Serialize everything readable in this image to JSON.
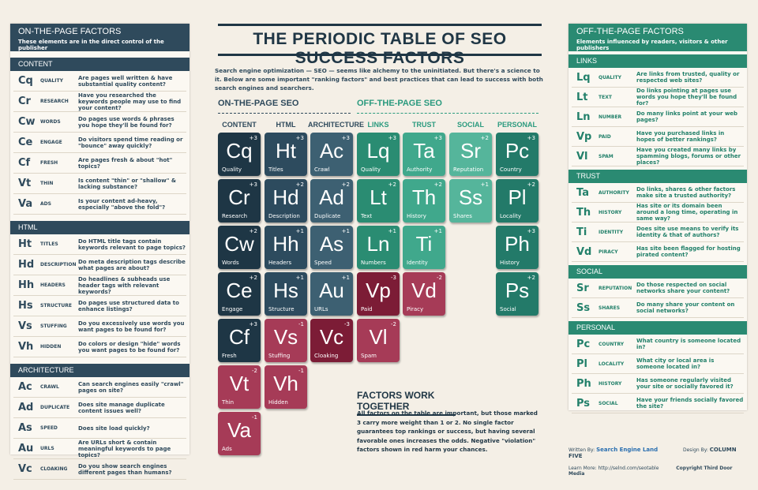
{
  "header": {
    "title": "THE PERIODIC TABLE OF SEO SUCCESS FACTORS",
    "intro": "Search engine optimization — SEO — seems like alchemy to the uninitiated. But there's a science to it. Below are some important \"ranking factors\" and best practices that can lead to success with both search engines and searchers."
  },
  "left_panel": {
    "title": "ON-THE-PAGE FACTORS",
    "subtitle": "These elements are in the direct control of the publisher",
    "sections": [
      {
        "heading": "CONTENT",
        "rows": [
          {
            "symbol": "Cq",
            "name": "QUALITY",
            "description": "Are pages well written & have substantial quality content?"
          },
          {
            "symbol": "Cr",
            "name": "RESEARCH",
            "description": "Have you researched the keywords people may use to find your content?"
          },
          {
            "symbol": "Cw",
            "name": "WORDS",
            "description": "Do pages use words & phrases you hope they'll be found for?"
          },
          {
            "symbol": "Ce",
            "name": "ENGAGE",
            "description": "Do visitors spend time reading or \"bounce\" away quickly?"
          },
          {
            "symbol": "Cf",
            "name": "FRESH",
            "description": "Are pages fresh & about \"hot\" topics?"
          },
          {
            "symbol": "Vt",
            "name": "THIN",
            "description": "Is content \"thin\" or \"shallow\" & lacking substance?"
          },
          {
            "symbol": "Va",
            "name": "ADS",
            "description": "Is your content ad-heavy, especially \"above the fold\"?"
          }
        ]
      },
      {
        "heading": "HTML",
        "rows": [
          {
            "symbol": "Ht",
            "name": "TITLES",
            "description": "Do HTML title tags contain keywords relevant to page topics?"
          },
          {
            "symbol": "Hd",
            "name": "DESCRIPTION",
            "description": "Do meta description tags describe what pages are about?"
          },
          {
            "symbol": "Hh",
            "name": "HEADERS",
            "description": "Do headlines & subheads use header tags with relevant keywords?"
          },
          {
            "symbol": "Hs",
            "name": "STRUCTURE",
            "description": "Do pages use structured data to enhance listings?"
          },
          {
            "symbol": "Vs",
            "name": "STUFFING",
            "description": "Do you excessively use words you want pages to be found for?"
          },
          {
            "symbol": "Vh",
            "name": "HIDDEN",
            "description": "Do colors or design \"hide\" words you want pages to be found for?"
          }
        ]
      },
      {
        "heading": "ARCHITECTURE",
        "rows": [
          {
            "symbol": "Ac",
            "name": "CRAWL",
            "description": "Can search engines easily \"crawl\" pages on site?"
          },
          {
            "symbol": "Ad",
            "name": "DUPLICATE",
            "description": "Does site manage duplicate content issues well?"
          },
          {
            "symbol": "As",
            "name": "SPEED",
            "description": "Does site load quickly?"
          },
          {
            "symbol": "Au",
            "name": "URLS",
            "description": "Are URLs short & contain meaningful keywords to page topics?"
          },
          {
            "symbol": "Vc",
            "name": "CLOAKING",
            "description": "Do you show search engines different pages than humans?"
          }
        ]
      }
    ]
  },
  "right_panel": {
    "title": "OFF-THE-PAGE FACTORS",
    "subtitle": "Elements influenced by readers, visitors & other publishers",
    "sections": [
      {
        "heading": "LINKS",
        "rows": [
          {
            "symbol": "Lq",
            "name": "QUALITY",
            "description": "Are links from trusted, quality or respected web sites?"
          },
          {
            "symbol": "Lt",
            "name": "TEXT",
            "description": "Do links pointing at pages use words you hope they'll be found for?"
          },
          {
            "symbol": "Ln",
            "name": "NUMBER",
            "description": "Do many links point at your web pages?"
          },
          {
            "symbol": "Vp",
            "name": "PAID",
            "description": "Have you purchased links in hopes of better rankings?"
          },
          {
            "symbol": "Vl",
            "name": "SPAM",
            "description": "Have you created many links by spamming blogs, forums or other places?"
          }
        ]
      },
      {
        "heading": "TRUST",
        "rows": [
          {
            "symbol": "Ta",
            "name": "AUTHORITY",
            "description": "Do links, shares & other factors make site a trusted authority?"
          },
          {
            "symbol": "Th",
            "name": "HISTORY",
            "description": "Has site or its domain been around a long time, operating in same way?"
          },
          {
            "symbol": "Ti",
            "name": "IDENTITY",
            "description": "Does site use means to verify its identity & that of authors?"
          },
          {
            "symbol": "Vd",
            "name": "PIRACY",
            "description": "Has site been flagged for hosting pirated content?"
          }
        ]
      },
      {
        "heading": "SOCIAL",
        "rows": [
          {
            "symbol": "Sr",
            "name": "REPUTATION",
            "description": "Do those respected on social networks share your content?"
          },
          {
            "symbol": "Ss",
            "name": "SHARES",
            "description": "Do many share your content on social networks?"
          }
        ]
      },
      {
        "heading": "PERSONAL",
        "rows": [
          {
            "symbol": "Pc",
            "name": "COUNTRY",
            "description": "What country is someone located in?"
          },
          {
            "symbol": "Pl",
            "name": "LOCALITY",
            "description": "What city or local area is someone located in?"
          },
          {
            "symbol": "Ph",
            "name": "HISTORY",
            "description": "Has someone regularly visited your site or socially favored it?"
          },
          {
            "symbol": "Ps",
            "name": "SOCIAL",
            "description": "Have your friends socially favored the site?"
          }
        ]
      }
    ]
  },
  "table": {
    "groups": [
      "ON-THE-PAGE SEO",
      "OFF-THE-PAGE SEO"
    ],
    "columns": [
      {
        "header": "CONTENT",
        "tiles": [
          {
            "symbol": "Cq",
            "name": "Quality",
            "weight": "+3"
          },
          {
            "symbol": "Cr",
            "name": "Research",
            "weight": "+3"
          },
          {
            "symbol": "Cw",
            "name": "Words",
            "weight": "+2"
          },
          {
            "symbol": "Ce",
            "name": "Engage",
            "weight": "+2"
          },
          {
            "symbol": "Cf",
            "name": "Fresh",
            "weight": "+3"
          },
          {
            "symbol": "Vt",
            "name": "Thin",
            "weight": "-2"
          },
          {
            "symbol": "Va",
            "name": "Ads",
            "weight": "-1"
          }
        ]
      },
      {
        "header": "HTML",
        "tiles": [
          {
            "symbol": "Ht",
            "name": "Titles",
            "weight": "+3"
          },
          {
            "symbol": "Hd",
            "name": "Description",
            "weight": "+2"
          },
          {
            "symbol": "Hh",
            "name": "Headers",
            "weight": "+1"
          },
          {
            "symbol": "Hs",
            "name": "Structure",
            "weight": "+1"
          },
          {
            "symbol": "Vs",
            "name": "Stuffing",
            "weight": "-1"
          },
          {
            "symbol": "Vh",
            "name": "Hidden",
            "weight": "-1"
          }
        ]
      },
      {
        "header": "ARCHITECTURE",
        "tiles": [
          {
            "symbol": "Ac",
            "name": "Crawl",
            "weight": "+3"
          },
          {
            "symbol": "Ad",
            "name": "Duplicate",
            "weight": "+2"
          },
          {
            "symbol": "As",
            "name": "Speed",
            "weight": "+1"
          },
          {
            "symbol": "Au",
            "name": "URLs",
            "weight": "+1"
          },
          {
            "symbol": "Vc",
            "name": "Cloaking",
            "weight": "-3"
          }
        ]
      },
      {
        "header": "LINKS",
        "tiles": [
          {
            "symbol": "Lq",
            "name": "Quality",
            "weight": "+3"
          },
          {
            "symbol": "Lt",
            "name": "Text",
            "weight": "+2"
          },
          {
            "symbol": "Ln",
            "name": "Numbers",
            "weight": "+1"
          },
          {
            "symbol": "Vp",
            "name": "Paid",
            "weight": "-3"
          },
          {
            "symbol": "Vl",
            "name": "Spam",
            "weight": "-2"
          }
        ]
      },
      {
        "header": "TRUST",
        "tiles": [
          {
            "symbol": "Ta",
            "name": "Authority",
            "weight": "+3"
          },
          {
            "symbol": "Th",
            "name": "History",
            "weight": "+2"
          },
          {
            "symbol": "Ti",
            "name": "Identity",
            "weight": "+1"
          },
          {
            "symbol": "Vd",
            "name": "Piracy",
            "weight": "-2"
          }
        ]
      },
      {
        "header": "SOCIAL",
        "tiles": [
          {
            "symbol": "Sr",
            "name": "Reputation",
            "weight": "+2"
          },
          {
            "symbol": "Ss",
            "name": "Shares",
            "weight": "+1"
          }
        ]
      },
      {
        "header": "PERSONAL",
        "tiles": [
          {
            "symbol": "Pc",
            "name": "Country",
            "weight": "+3"
          },
          {
            "symbol": "Pl",
            "name": "Locality",
            "weight": "+2"
          },
          {
            "symbol": "Ph",
            "name": "History",
            "weight": "+3"
          },
          {
            "symbol": "Ps",
            "name": "Social",
            "weight": "+2"
          }
        ]
      }
    ]
  },
  "footer": {
    "title": "FACTORS WORK TOGETHER",
    "text": "All factors on the table are important, but those marked 3 carry more weight than 1 or 2. No single factor guarantees top rankings or success, but having several favorable ones increases the odds. Negative \"violation\" factors shown in red harm your chances."
  },
  "credits": {
    "written_label": "Written By:",
    "written_by": "Search Engine Land",
    "design_label": "Design By:",
    "design_by": "COLUMN FIVE",
    "learn_label": "Learn More:",
    "url": "http://selnd.com/seotable",
    "copyright": "Copyright Third Door Media"
  }
}
